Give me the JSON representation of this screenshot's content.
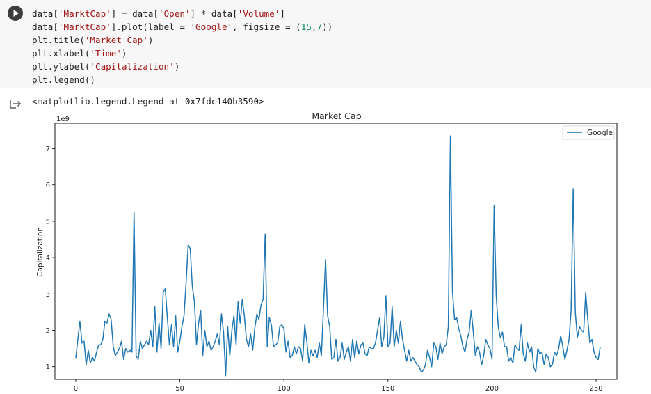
{
  "cell": {
    "run_icon": "play-icon",
    "code": [
      [
        {
          "t": "data["
        },
        {
          "t": "'MarktCap'",
          "c": "str"
        },
        {
          "t": "] = data["
        },
        {
          "t": "'Open'",
          "c": "str"
        },
        {
          "t": "] * data["
        },
        {
          "t": "'Volume'",
          "c": "str"
        },
        {
          "t": "]"
        }
      ],
      [
        {
          "t": "data["
        },
        {
          "t": "'MarktCap'",
          "c": "str"
        },
        {
          "t": "].plot(label = "
        },
        {
          "t": "'Google'",
          "c": "str"
        },
        {
          "t": ", figsize = ("
        },
        {
          "t": "15",
          "c": "num"
        },
        {
          "t": ","
        },
        {
          "t": "7",
          "c": "num"
        },
        {
          "t": "))"
        }
      ],
      [
        {
          "t": "plt.title("
        },
        {
          "t": "'Market Cap'",
          "c": "str"
        },
        {
          "t": ")"
        }
      ],
      [
        {
          "t": "plt.xlabel("
        },
        {
          "t": "'Time'",
          "c": "str"
        },
        {
          "t": ")"
        }
      ],
      [
        {
          "t": "plt.ylabel("
        },
        {
          "t": "'Capitalization'",
          "c": "str"
        },
        {
          "t": ")"
        }
      ],
      [
        {
          "t": "plt.legend()"
        }
      ]
    ]
  },
  "output": {
    "icon": "output-arrow-icon",
    "text": "<matplotlib.legend.Legend at 0x7fdc140b3590>"
  },
  "chart_data": {
    "type": "line",
    "title": "Market Cap",
    "xlabel": "",
    "ylabel": "Capitalization",
    "offset_text": "1e9",
    "xlim": [
      -10,
      260
    ],
    "ylim": [
      0.65,
      7.7
    ],
    "xticks": [
      0,
      50,
      100,
      150,
      200,
      250
    ],
    "xtick_labels": [
      "0",
      "50",
      "100",
      "150",
      "200",
      "250"
    ],
    "yticks": [
      1,
      2,
      3,
      4,
      5,
      6,
      7
    ],
    "ytick_labels": [
      "1",
      "2",
      "3",
      "4",
      "5",
      "6",
      "7"
    ],
    "legend": {
      "position": "top-right",
      "entries": [
        "Google"
      ]
    },
    "grid": false,
    "line_color": "#1f77b4",
    "series": [
      {
        "name": "Google",
        "x_start": 0,
        "values": [
          1.22,
          1.75,
          2.25,
          1.65,
          1.7,
          1.05,
          1.45,
          1.1,
          1.25,
          1.15,
          1.4,
          1.6,
          1.6,
          1.75,
          2.25,
          2.2,
          2.45,
          2.3,
          1.55,
          1.3,
          1.4,
          1.5,
          1.7,
          1.2,
          1.5,
          1.4,
          1.45,
          1.4,
          5.25,
          1.3,
          1.2,
          1.7,
          1.5,
          1.6,
          1.7,
          1.6,
          2.0,
          1.55,
          2.65,
          1.4,
          2.2,
          1.5,
          3.05,
          3.15,
          2.35,
          1.6,
          2.15,
          1.55,
          2.4,
          1.4,
          1.7,
          2.1,
          2.4,
          3.3,
          4.35,
          4.25,
          3.2,
          2.8,
          1.6,
          2.2,
          2.55,
          1.3,
          2.0,
          1.55,
          1.7,
          1.45,
          1.55,
          1.7,
          1.9,
          1.6,
          2.45,
          1.95,
          0.75,
          2.1,
          1.3,
          2.0,
          2.4,
          1.6,
          2.8,
          2.2,
          2.85,
          2.4,
          1.75,
          1.55,
          1.9,
          1.45,
          2.05,
          2.45,
          2.3,
          2.7,
          2.85,
          4.65,
          1.55,
          2.35,
          2.15,
          1.55,
          1.6,
          1.65,
          2.1,
          2.15,
          2.05,
          1.4,
          1.7,
          1.25,
          1.3,
          1.55,
          1.35,
          1.55,
          1.5,
          1.15,
          2.15,
          1.7,
          1.1,
          1.45,
          1.3,
          1.45,
          1.25,
          1.65,
          1.3,
          2.6,
          3.95,
          2.4,
          2.1,
          1.2,
          1.25,
          1.75,
          1.15,
          1.25,
          1.65,
          1.2,
          1.4,
          1.55,
          1.15,
          1.75,
          1.25,
          1.7,
          1.35,
          1.6,
          1.65,
          1.35,
          1.3,
          1.55,
          1.5,
          1.5,
          1.65,
          2.0,
          2.35,
          1.55,
          1.8,
          2.95,
          1.55,
          1.65,
          2.65,
          1.55,
          2.0,
          1.65,
          2.25,
          1.75,
          1.45,
          1.15,
          1.45,
          1.15,
          1.25,
          1.15,
          1.05,
          1.0,
          0.85,
          0.9,
          1.05,
          1.45,
          1.25,
          1.0,
          1.65,
          1.55,
          1.2,
          1.65,
          1.35,
          1.55,
          1.6,
          2.1,
          7.35,
          3.05,
          2.3,
          2.35,
          2.05,
          1.85,
          1.55,
          1.4,
          1.75,
          1.95,
          2.55,
          1.95,
          1.3,
          1.55,
          1.4,
          1.05,
          1.3,
          1.75,
          1.6,
          1.5,
          1.2,
          5.45,
          2.95,
          2.1,
          1.8,
          1.95,
          1.55,
          1.55,
          1.15,
          1.25,
          1.1,
          1.6,
          1.5,
          1.45,
          2.15,
          1.35,
          1.15,
          1.65,
          1.4,
          1.55,
          1.0,
          0.85,
          1.5,
          1.35,
          1.4,
          1.05,
          1.35,
          1.25,
          1.0,
          1.05,
          1.4,
          1.3,
          1.5,
          1.85,
          1.55,
          1.2,
          1.45,
          1.75,
          2.55,
          5.9,
          2.5,
          1.8,
          2.1,
          2.0,
          1.95,
          3.05,
          2.3,
          1.65,
          1.75,
          1.4,
          1.25,
          1.2,
          1.55
        ]
      }
    ]
  }
}
